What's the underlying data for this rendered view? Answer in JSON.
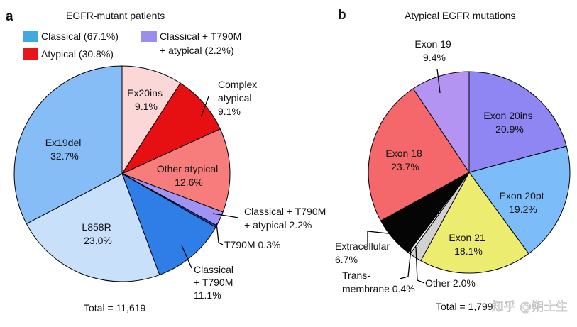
{
  "chart_data": [
    {
      "panel": "a",
      "type": "pie",
      "title": "EGFR-mutant patients",
      "legend": [
        {
          "label": "Classical (67.1%)",
          "color": "#3fa9e0"
        },
        {
          "label": "Classical + T790M",
          "label2": "+ atypical (2.2%)",
          "color": "#9a8df0"
        },
        {
          "label": "Atypical (30.8%)",
          "color": "#e8151b"
        }
      ],
      "slices": [
        {
          "name": "Ex20ins",
          "value": 9.1,
          "label_lines": [
            "Ex20ins",
            "9.1%"
          ],
          "color": "#fbd7d7"
        },
        {
          "name": "Complex atypical",
          "value": 9.1,
          "label_lines": [
            "Complex",
            "atypical",
            "9.1%"
          ],
          "color": "#e60f12"
        },
        {
          "name": "Other atypical",
          "value": 12.6,
          "label_lines": [
            "Other atypical",
            "12.6%"
          ],
          "color": "#f77d7c"
        },
        {
          "name": "Classical + T790M + atypical",
          "value": 2.2,
          "label_lines": [
            "Classical + T790M",
            "+ atypical 2.2%"
          ],
          "color": "#9f94f3"
        },
        {
          "name": "T790M",
          "value": 0.3,
          "label_lines": [
            "T790M 0.3%"
          ],
          "color": "#1a3fc7"
        },
        {
          "name": "Classical + T790M",
          "value": 11.1,
          "label_lines": [
            "Classical",
            "+ T790M",
            "11.1%"
          ],
          "color": "#2f7ee8"
        },
        {
          "name": "L858R",
          "value": 23.0,
          "label_lines": [
            "L858R",
            "23.0%"
          ],
          "color": "#c8e0fa"
        },
        {
          "name": "Ex19del",
          "value": 32.7,
          "label_lines": [
            "Ex19del",
            "32.7%"
          ],
          "color": "#86bdf6"
        }
      ],
      "total_label": "Total = 11,619"
    },
    {
      "panel": "b",
      "type": "pie",
      "title": "Atypical EGFR mutations",
      "slices": [
        {
          "name": "Exon 20ins",
          "value": 20.9,
          "label_lines": [
            "Exon 20ins",
            "20.9%"
          ],
          "color": "#8f86f3"
        },
        {
          "name": "Exon 20pt",
          "value": 19.2,
          "label_lines": [
            "Exon 20pt",
            "19.2%"
          ],
          "color": "#7cbcf8"
        },
        {
          "name": "Exon 21",
          "value": 18.1,
          "label_lines": [
            "Exon 21",
            "18.1%"
          ],
          "color": "#ecec70"
        },
        {
          "name": "Other",
          "value": 2.0,
          "label_lines": [
            "Other 2.0%"
          ],
          "color": "#d2d2d2"
        },
        {
          "name": "Trans-membrane",
          "value": 0.4,
          "label_lines": [
            "Trans-",
            "membrane 0.4%"
          ],
          "color": "#ffffff"
        },
        {
          "name": "Extracellular",
          "value": 6.7,
          "label_lines": [
            "Extracellular",
            "6.7%"
          ],
          "color": "#050505"
        },
        {
          "name": "Exon 18",
          "value": 23.7,
          "label_lines": [
            "Exon 18",
            "23.7%"
          ],
          "color": "#f4686b"
        },
        {
          "name": "Exon 19",
          "value": 9.4,
          "label_lines": [
            "Exon 19",
            "9.4%"
          ],
          "color": "#b394f3"
        }
      ],
      "total_label": "Total = 1,799"
    }
  ],
  "panel_letters": [
    "a",
    "b"
  ],
  "watermark": "知乎 @朔士生"
}
